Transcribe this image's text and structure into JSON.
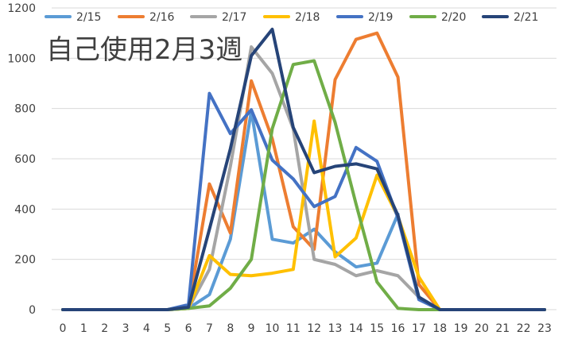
{
  "chart_data": {
    "type": "line",
    "title": "自己使用2月3週",
    "xlabel": "",
    "ylabel": "",
    "categories": [
      "0",
      "1",
      "2",
      "3",
      "4",
      "5",
      "6",
      "7",
      "8",
      "9",
      "10",
      "11",
      "12",
      "13",
      "14",
      "15",
      "16",
      "17",
      "18",
      "19",
      "20",
      "21",
      "22",
      "23"
    ],
    "x": [
      0,
      1,
      2,
      3,
      4,
      5,
      6,
      7,
      8,
      9,
      10,
      11,
      12,
      13,
      14,
      15,
      16,
      17,
      18,
      19,
      20,
      21,
      22,
      23
    ],
    "ylim": [
      0,
      1200
    ],
    "yticks": [
      0,
      200,
      400,
      600,
      800,
      1000,
      1200
    ],
    "grid": "horizontal",
    "legend_position": "top",
    "series": [
      {
        "name": "2/15",
        "color": "#5B9BD5",
        "values": [
          0,
          0,
          0,
          0,
          0,
          0,
          5,
          60,
          280,
          790,
          280,
          265,
          320,
          230,
          170,
          185,
          380,
          null,
          null,
          null,
          null,
          null,
          null,
          null
        ]
      },
      {
        "name": "2/16",
        "color": "#ED7D31",
        "values": [
          0,
          0,
          0,
          0,
          0,
          0,
          5,
          500,
          305,
          910,
          680,
          330,
          240,
          915,
          1075,
          1100,
          925,
          100,
          0,
          0,
          0,
          0,
          0,
          0
        ]
      },
      {
        "name": "2/17",
        "color": "#A5A5A5",
        "values": [
          0,
          0,
          0,
          0,
          0,
          0,
          5,
          160,
          570,
          1045,
          940,
          720,
          200,
          180,
          135,
          155,
          135,
          50,
          0,
          0,
          0,
          0,
          0,
          0
        ]
      },
      {
        "name": "2/18",
        "color": "#FFC000",
        "values": [
          0,
          0,
          0,
          0,
          0,
          0,
          5,
          215,
          140,
          135,
          145,
          160,
          750,
          210,
          285,
          535,
          370,
          130,
          0,
          0,
          0,
          0,
          0,
          0
        ]
      },
      {
        "name": "2/19",
        "color": "#4472C4",
        "values": [
          0,
          0,
          0,
          0,
          0,
          0,
          20,
          860,
          700,
          795,
          595,
          520,
          410,
          450,
          645,
          590,
          365,
          40,
          0,
          0,
          0,
          0,
          0,
          0
        ]
      },
      {
        "name": "2/20",
        "color": "#70AD47",
        "values": [
          0,
          0,
          0,
          0,
          0,
          0,
          5,
          15,
          85,
          200,
          720,
          975,
          990,
          745,
          420,
          110,
          5,
          0,
          0,
          0,
          0,
          0,
          0,
          0
        ]
      },
      {
        "name": "2/21",
        "color": "#264478",
        "values": [
          0,
          0,
          0,
          0,
          0,
          0,
          10,
          320,
          640,
          1010,
          1115,
          725,
          545,
          570,
          580,
          560,
          375,
          50,
          0,
          0,
          0,
          0,
          0,
          0
        ]
      }
    ]
  }
}
